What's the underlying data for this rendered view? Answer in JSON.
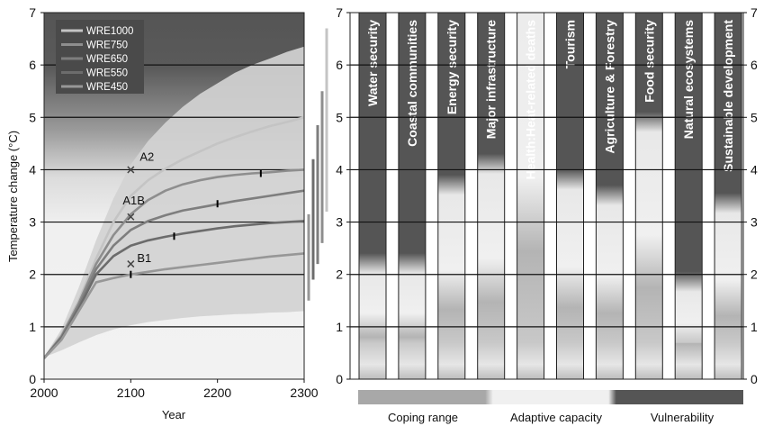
{
  "chart_data": [
    {
      "type": "line",
      "xlabel": "Year",
      "ylabel": "Temperature change (°C)",
      "xlim": [
        2000,
        2300
      ],
      "ylim": [
        0,
        7
      ],
      "x_ticks": [
        "2000",
        "2100",
        "2200",
        "2300"
      ],
      "y_ticks": [
        "0",
        "1",
        "2",
        "3",
        "4",
        "5",
        "6",
        "7"
      ],
      "legend_position": "top-left",
      "colors": {
        "wre1000": "#c4c4c4",
        "wre750": "#8e8e8e",
        "wre650": "#7e7e7e",
        "wre550": "#6c6c6c",
        "wre450": "#979797",
        "band": "#d2d2d2",
        "vulnerability": "#555555"
      },
      "band": {
        "x": [
          2000,
          2020,
          2040,
          2060,
          2080,
          2100,
          2120,
          2140,
          2160,
          2180,
          2200,
          2220,
          2240,
          2260,
          2280,
          2300
        ],
        "lower": [
          0.42,
          0.55,
          0.7,
          0.84,
          0.95,
          1.03,
          1.09,
          1.13,
          1.17,
          1.2,
          1.22,
          1.24,
          1.25,
          1.27,
          1.28,
          1.3
        ],
        "upper": [
          0.42,
          0.95,
          1.75,
          2.65,
          3.45,
          4.1,
          4.55,
          4.9,
          5.2,
          5.45,
          5.65,
          5.85,
          6.0,
          6.12,
          6.25,
          6.35
        ]
      },
      "x": [
        2000,
        2020,
        2040,
        2060,
        2080,
        2100,
        2120,
        2140,
        2160,
        2180,
        2200,
        2220,
        2240,
        2260,
        2280,
        2300
      ],
      "series": [
        {
          "name": "WRE1000",
          "values": [
            0.4,
            0.85,
            1.5,
            2.3,
            3.0,
            3.5,
            3.8,
            4.02,
            4.2,
            4.35,
            4.5,
            4.62,
            4.73,
            4.83,
            4.91,
            5.0
          ]
        },
        {
          "name": "WRE750",
          "values": [
            0.4,
            0.82,
            1.45,
            2.2,
            2.75,
            3.15,
            3.42,
            3.6,
            3.72,
            3.8,
            3.86,
            3.9,
            3.93,
            3.95,
            3.98,
            4.0
          ]
        },
        {
          "name": "WRE650",
          "values": [
            0.4,
            0.8,
            1.4,
            2.1,
            2.55,
            2.85,
            3.02,
            3.13,
            3.22,
            3.28,
            3.34,
            3.4,
            3.45,
            3.5,
            3.55,
            3.6
          ]
        },
        {
          "name": "WRE550",
          "values": [
            0.4,
            0.78,
            1.35,
            2.0,
            2.35,
            2.55,
            2.65,
            2.72,
            2.78,
            2.83,
            2.88,
            2.92,
            2.95,
            2.98,
            3.0,
            3.02
          ]
        },
        {
          "name": "WRE450",
          "values": [
            0.4,
            0.75,
            1.3,
            1.85,
            1.93,
            2.0,
            2.05,
            2.1,
            2.14,
            2.18,
            2.22,
            2.26,
            2.3,
            2.34,
            2.37,
            2.4
          ]
        }
      ],
      "markers": [
        {
          "series": "WRE750",
          "x": 2250,
          "y": 3.93
        },
        {
          "series": "WRE650",
          "x": 2200,
          "y": 3.35
        },
        {
          "series": "WRE550",
          "x": 2150,
          "y": 2.73
        },
        {
          "series": "WRE450",
          "x": 2100,
          "y": 2.0
        }
      ],
      "scenarios": [
        {
          "label": "A2",
          "x": 2100,
          "y": 4.0
        },
        {
          "label": "A1B",
          "x": 2100,
          "y": 3.1
        },
        {
          "label": "B1",
          "x": 2100,
          "y": 2.2
        }
      ],
      "range_bars": [
        {
          "series": "WRE450",
          "low": 1.5,
          "high": 3.15,
          "color": "#979797"
        },
        {
          "series": "WRE550",
          "low": 1.9,
          "high": 4.2,
          "color": "#6c6c6c"
        },
        {
          "series": "WRE650",
          "low": 2.2,
          "high": 4.85,
          "color": "#7e7e7e"
        },
        {
          "series": "WRE750",
          "low": 2.6,
          "high": 5.5,
          "color": "#8e8e8e"
        },
        {
          "series": "WRE1000",
          "low": 3.2,
          "high": 6.7,
          "color": "#c4c4c4"
        }
      ]
    },
    {
      "type": "bar",
      "ylim": [
        0,
        7
      ],
      "y_ticks": [
        "0",
        "1",
        "2",
        "3",
        "4",
        "5",
        "6",
        "7"
      ],
      "categories": [
        "Water security",
        "Coastal communities",
        "Energy security",
        "Major infrastructure",
        "Health:Heat-related deaths",
        "Tourism",
        "Agriculture & Forestry",
        "Food security",
        "Natural ecosystems",
        "Sustainable development"
      ],
      "vulnerability_threshold": [
        2.3,
        2.3,
        3.8,
        4.2,
        7.0,
        3.9,
        3.6,
        5.0,
        1.95,
        3.45
      ],
      "legend": [
        "Coping range",
        "Adaptive capacity",
        "Vulnerability"
      ]
    }
  ]
}
